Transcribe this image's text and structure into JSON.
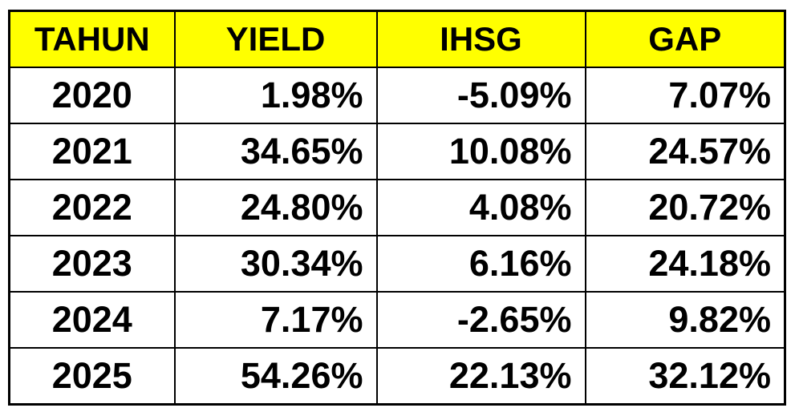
{
  "table": {
    "columns": [
      "TAHUN",
      "YIELD",
      "IHSG",
      "GAP"
    ],
    "rows": [
      [
        "2020",
        "1.98%",
        "-5.09%",
        "7.07%"
      ],
      [
        "2021",
        "34.65%",
        "10.08%",
        "24.57%"
      ],
      [
        "2022",
        "24.80%",
        "4.08%",
        "20.72%"
      ],
      [
        "2023",
        "30.34%",
        "6.16%",
        "24.18%"
      ],
      [
        "2024",
        "7.17%",
        "-2.65%",
        "9.82%"
      ],
      [
        "2025",
        "54.26%",
        "22.13%",
        "32.12%"
      ]
    ]
  },
  "colors": {
    "header_bg": "#FFFF00",
    "cell_bg": "#FFFFFF",
    "border": "#000000",
    "text": "#000000"
  },
  "chart_data": {
    "type": "table",
    "title": "",
    "columns": [
      "TAHUN",
      "YIELD",
      "IHSG",
      "GAP"
    ],
    "categories": [
      "2020",
      "2021",
      "2022",
      "2023",
      "2024",
      "2025"
    ],
    "series": [
      {
        "name": "YIELD",
        "values": [
          1.98,
          34.65,
          24.8,
          30.34,
          7.17,
          54.26
        ]
      },
      {
        "name": "IHSG",
        "values": [
          -5.09,
          10.08,
          4.08,
          6.16,
          -2.65,
          22.13
        ]
      },
      {
        "name": "GAP",
        "values": [
          7.07,
          24.57,
          20.72,
          24.18,
          9.82,
          32.12
        ]
      }
    ],
    "value_format": "percent",
    "layout": {
      "header_background": "#FFFF00",
      "grid": true,
      "numeric_alignment": "right"
    }
  }
}
